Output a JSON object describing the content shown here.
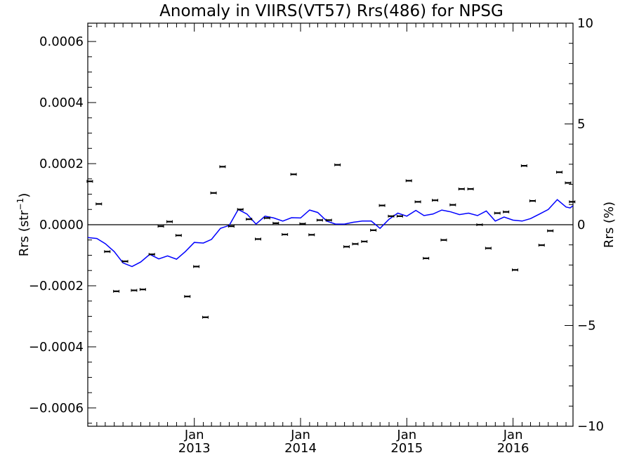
{
  "chart_data": {
    "type": "scatter",
    "title": "Anomaly in VIIRS(VT57) Rrs(486) for NPSG",
    "ylabel_left": {
      "base": "Rrs (str",
      "sup": "−1",
      "close": ")"
    },
    "ylabel_right": "Rrs (%)",
    "x_axis": {
      "unit": "date",
      "range": [
        "2012-01-01",
        "2016-07-25"
      ],
      "major_ticks": [
        {
          "date": "2013-01-01",
          "month": "Jan",
          "year": "2013"
        },
        {
          "date": "2014-01-01",
          "month": "Jan",
          "year": "2014"
        },
        {
          "date": "2015-01-01",
          "month": "Jan",
          "year": "2015"
        },
        {
          "date": "2016-01-01",
          "month": "Jan",
          "year": "2016"
        }
      ]
    },
    "y_left": {
      "range": [
        -0.00066,
        0.00066
      ],
      "ticks": [
        -0.0006,
        -0.0004,
        -0.0002,
        0.0,
        0.0002,
        0.0004,
        0.0006
      ],
      "tick_labels": [
        "−0.0006",
        "−0.0004",
        "−0.0002",
        "0.0000",
        "0.0002",
        "0.0004",
        "0.0006"
      ]
    },
    "y_right": {
      "range": [
        -10,
        10
      ],
      "ticks": [
        -10,
        -5,
        0,
        5,
        10
      ],
      "tick_labels": [
        "−10",
        "−5",
        "0",
        "5",
        "10"
      ]
    },
    "zero_line": true,
    "grid": false,
    "series": [
      {
        "kind": "points_with_errorbars",
        "axis": "left",
        "color": "#000000",
        "points": [
          [
            "2012-01-08",
            0.000142
          ],
          [
            "2012-02-08",
            6.8e-05
          ],
          [
            "2012-03-08",
            -8.8e-05
          ],
          [
            "2012-04-08",
            -0.000218
          ],
          [
            "2012-05-08",
            -0.00012
          ],
          [
            "2012-06-08",
            -0.000215
          ],
          [
            "2012-07-08",
            -0.000212
          ],
          [
            "2012-08-08",
            -9.7e-05
          ],
          [
            "2012-09-08",
            -5e-06
          ],
          [
            "2012-10-08",
            1e-05
          ],
          [
            "2012-11-08",
            -3.5e-05
          ],
          [
            "2012-12-08",
            -0.000235
          ],
          [
            "2013-01-08",
            -0.000137
          ],
          [
            "2013-02-08",
            -0.000303
          ],
          [
            "2013-03-08",
            0.000104
          ],
          [
            "2013-04-08",
            0.00019
          ],
          [
            "2013-05-08",
            -5e-06
          ],
          [
            "2013-06-08",
            5e-05
          ],
          [
            "2013-07-08",
            1.8e-05
          ],
          [
            "2013-08-08",
            -4.7e-05
          ],
          [
            "2013-09-08",
            2.2e-05
          ],
          [
            "2013-10-08",
            5e-06
          ],
          [
            "2013-11-08",
            -3.2e-05
          ],
          [
            "2013-12-08",
            0.000165
          ],
          [
            "2014-01-08",
            3e-06
          ],
          [
            "2014-02-08",
            -3.3e-05
          ],
          [
            "2014-03-08",
            1.5e-05
          ],
          [
            "2014-04-08",
            1.5e-05
          ],
          [
            "2014-05-08",
            0.000196
          ],
          [
            "2014-06-08",
            -7.2e-05
          ],
          [
            "2014-07-08",
            -6.3e-05
          ],
          [
            "2014-08-08",
            -5.5e-05
          ],
          [
            "2014-09-08",
            -1.8e-05
          ],
          [
            "2014-10-08",
            6.3e-05
          ],
          [
            "2014-11-08",
            2.8e-05
          ],
          [
            "2014-12-08",
            2.8e-05
          ],
          [
            "2015-01-08",
            0.000144
          ],
          [
            "2015-02-08",
            7.5e-05
          ],
          [
            "2015-03-08",
            -0.00011
          ],
          [
            "2015-04-08",
            8e-05
          ],
          [
            "2015-05-08",
            -5e-05
          ],
          [
            "2015-06-08",
            6.5e-05
          ],
          [
            "2015-07-08",
            0.000117
          ],
          [
            "2015-08-08",
            0.000117
          ],
          [
            "2015-09-08",
            0.0
          ],
          [
            "2015-10-08",
            -7.7e-05
          ],
          [
            "2015-11-08",
            3.8e-05
          ],
          [
            "2015-12-08",
            4.2e-05
          ],
          [
            "2016-01-08",
            -0.000148
          ],
          [
            "2016-02-08",
            0.000193
          ],
          [
            "2016-03-08",
            7.8e-05
          ],
          [
            "2016-04-08",
            -6.7e-05
          ],
          [
            "2016-05-08",
            -2e-05
          ],
          [
            "2016-06-08",
            0.000172
          ],
          [
            "2016-07-08",
            0.000137
          ],
          [
            "2016-07-22",
            7.5e-05
          ]
        ]
      },
      {
        "kind": "line",
        "axis": "left",
        "color": "#0000ff",
        "points": [
          [
            "2012-01-01",
            -4.2e-05
          ],
          [
            "2012-02-01",
            -4.5e-05
          ],
          [
            "2012-03-01",
            -6.2e-05
          ],
          [
            "2012-04-01",
            -8.8e-05
          ],
          [
            "2012-05-01",
            -0.000125
          ],
          [
            "2012-06-01",
            -0.000137
          ],
          [
            "2012-07-01",
            -0.000122
          ],
          [
            "2012-08-01",
            -9.7e-05
          ],
          [
            "2012-09-01",
            -0.000112
          ],
          [
            "2012-10-01",
            -0.000102
          ],
          [
            "2012-11-01",
            -0.000113
          ],
          [
            "2012-12-01",
            -8.8e-05
          ],
          [
            "2013-01-01",
            -5.8e-05
          ],
          [
            "2013-02-01",
            -6e-05
          ],
          [
            "2013-03-01",
            -4.8e-05
          ],
          [
            "2013-04-01",
            -1.2e-05
          ],
          [
            "2013-05-01",
            -2e-06
          ],
          [
            "2013-06-01",
            5e-05
          ],
          [
            "2013-07-01",
            3.5e-05
          ],
          [
            "2013-08-01",
            2e-06
          ],
          [
            "2013-09-01",
            2.8e-05
          ],
          [
            "2013-10-01",
            2.2e-05
          ],
          [
            "2013-11-01",
            1.2e-05
          ],
          [
            "2013-12-01",
            2.3e-05
          ],
          [
            "2014-01-01",
            2.2e-05
          ],
          [
            "2014-02-01",
            4.8e-05
          ],
          [
            "2014-03-01",
            4e-05
          ],
          [
            "2014-04-01",
            1.2e-05
          ],
          [
            "2014-05-01",
            2e-06
          ],
          [
            "2014-06-01",
            2e-06
          ],
          [
            "2014-07-01",
            8e-06
          ],
          [
            "2014-08-01",
            1.2e-05
          ],
          [
            "2014-09-01",
            1.2e-05
          ],
          [
            "2014-10-01",
            -1.2e-05
          ],
          [
            "2014-11-01",
            1.8e-05
          ],
          [
            "2014-12-01",
            3.8e-05
          ],
          [
            "2015-01-01",
            2.8e-05
          ],
          [
            "2015-02-01",
            4.7e-05
          ],
          [
            "2015-03-01",
            3e-05
          ],
          [
            "2015-04-01",
            3.5e-05
          ],
          [
            "2015-05-01",
            4.8e-05
          ],
          [
            "2015-06-01",
            4.2e-05
          ],
          [
            "2015-07-01",
            3.3e-05
          ],
          [
            "2015-08-01",
            3.8e-05
          ],
          [
            "2015-09-01",
            3e-05
          ],
          [
            "2015-10-01",
            4.5e-05
          ],
          [
            "2015-11-01",
            1.2e-05
          ],
          [
            "2015-12-01",
            2.5e-05
          ],
          [
            "2016-01-01",
            1.5e-05
          ],
          [
            "2016-02-01",
            1.2e-05
          ],
          [
            "2016-03-01",
            2e-05
          ],
          [
            "2016-04-01",
            3.5e-05
          ],
          [
            "2016-05-01",
            5e-05
          ],
          [
            "2016-06-01",
            8.2e-05
          ],
          [
            "2016-07-01",
            5.8e-05
          ],
          [
            "2016-07-15",
            5.5e-05
          ],
          [
            "2016-07-25",
            6.2e-05
          ]
        ]
      }
    ]
  }
}
